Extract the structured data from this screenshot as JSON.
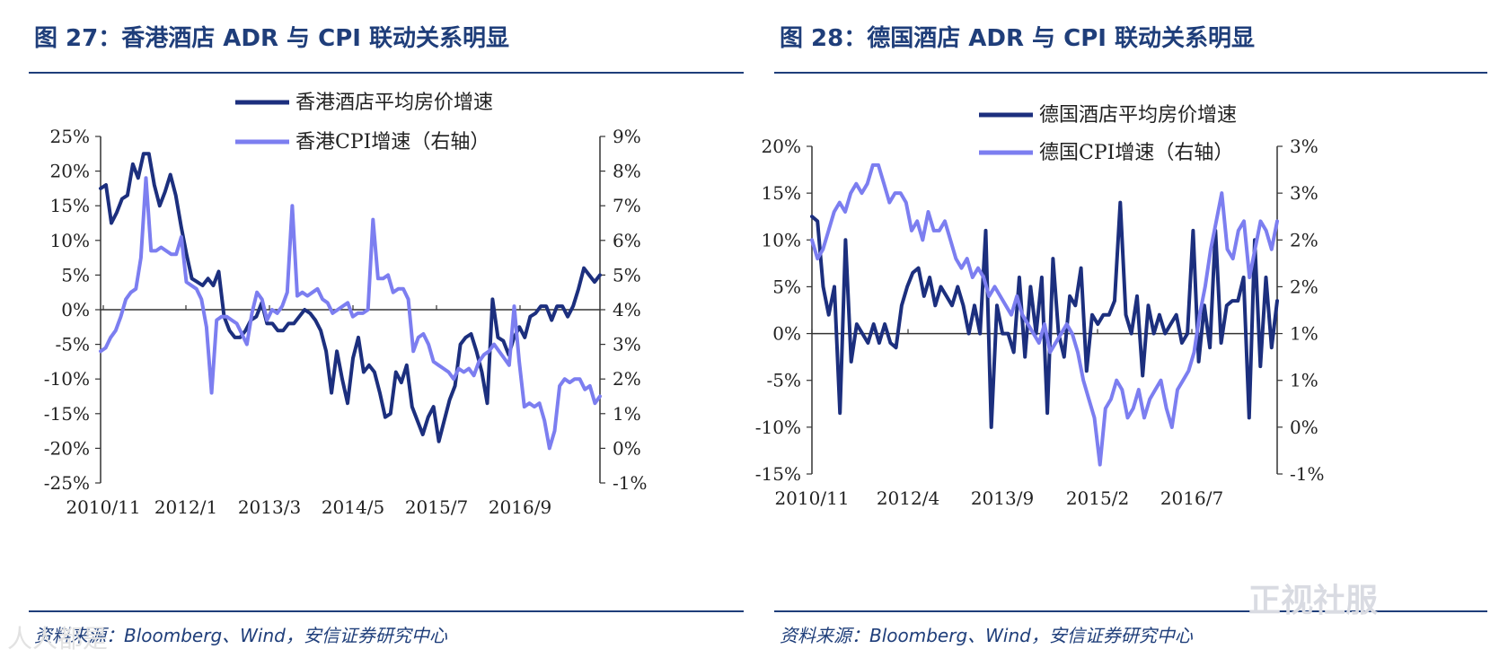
{
  "left": {
    "title": "图 27：香港酒店 ADR 与 CPI 联动关系明显",
    "source": "资料来源：Bloomberg、Wind，安信证券研究中心"
  },
  "right": {
    "title": "图 28：德国酒店 ADR 与 CPI 联动关系明显",
    "source": "资料来源：Bloomberg、Wind，安信证券研究中心"
  },
  "watermark": "正视社服",
  "watermark_left": "人人都是",
  "colors": {
    "adr": "#1c2f7e",
    "cpi": "#7c7ef0",
    "rule": "#1f3e7a"
  },
  "chart_data": [
    {
      "type": "line",
      "title": "图 27：香港酒店 ADR 与 CPI 联动关系明显",
      "x_tick_labels": [
        "2010/11",
        "2012/1",
        "2013/3",
        "2014/5",
        "2015/7",
        "2016/9"
      ],
      "y_left_ticks": [
        "25%",
        "20%",
        "15%",
        "10%",
        "5%",
        "0%",
        "-5%",
        "-10%",
        "-15%",
        "-20%",
        "-25%"
      ],
      "y_right_ticks": [
        "9%",
        "8%",
        "7%",
        "6%",
        "5%",
        "4%",
        "3%",
        "2%",
        "1%",
        "0%",
        "-1%"
      ],
      "ylim_left": [
        -25,
        25
      ],
      "ylim_right": [
        -1,
        9
      ],
      "x_range": [
        0,
        79
      ],
      "series": [
        {
          "name": "香港酒店平均房价增速",
          "axis": "left",
          "values": [
            17.5,
            18,
            12.5,
            14,
            16,
            16.5,
            21,
            19,
            22.5,
            22.5,
            18,
            15,
            17,
            19.5,
            16.5,
            12,
            8,
            4.5,
            4,
            3.5,
            4.5,
            3.5,
            5.5,
            -1,
            -3,
            -4,
            -4,
            -3,
            -1.5,
            -1,
            1,
            -2,
            -2,
            -3,
            -3,
            -2,
            -2,
            -1,
            0,
            -0.5,
            -1.5,
            -3,
            -6,
            -12,
            -6,
            -10,
            -13.5,
            -7,
            -4,
            -9,
            -8,
            -9,
            -12,
            -15.5,
            -15,
            -9,
            -10.5,
            -8,
            -14,
            -16,
            -18,
            -15.5,
            -14,
            -19,
            -16,
            -13,
            -11,
            -5,
            -4,
            -3.5,
            -6,
            -9,
            -13.5,
            1.5,
            -4,
            -4.5,
            -6.5,
            -4,
            -2.5,
            -4,
            -1,
            -0.5,
            0.5,
            0.5,
            -1.5,
            0.5,
            0.5,
            -1,
            0.5,
            3,
            6,
            5,
            4,
            5
          ]
        },
        {
          "name": "香港CPI增速（右轴）",
          "axis": "right",
          "values": [
            2.8,
            2.9,
            3.2,
            3.4,
            3.8,
            4.3,
            4.5,
            4.6,
            5.5,
            7.8,
            5.7,
            5.7,
            5.8,
            5.7,
            5.6,
            5.6,
            6.1,
            4.8,
            4.7,
            4.6,
            4.3,
            3.5,
            1.6,
            3.7,
            3.8,
            3.8,
            3.7,
            3.6,
            3.3,
            3.0,
            3.9,
            4.5,
            4.3,
            3.7,
            4.0,
            3.9,
            4.1,
            4.5,
            7.0,
            4.4,
            4.5,
            4.4,
            4.5,
            4.6,
            4.3,
            4.2,
            3.9,
            4.0,
            4.1,
            4.2,
            3.8,
            3.9,
            3.9,
            4.0,
            6.6,
            4.9,
            4.9,
            5.0,
            4.5,
            4.6,
            4.6,
            4.3,
            2.8,
            3.2,
            3.3,
            3.0,
            2.5,
            2.4,
            2.3,
            2.2,
            2.0,
            2.3,
            2.2,
            2.3,
            2.1,
            2.5,
            2.7,
            2.8,
            3.0,
            2.8,
            2.6,
            2.4,
            4.1,
            2.5,
            1.2,
            1.3,
            1.2,
            1.3,
            0.8,
            0.0,
            0.5,
            1.8,
            2.0,
            1.9,
            2.0,
            2.0,
            1.7,
            1.8,
            1.3,
            1.5
          ]
        }
      ]
    },
    {
      "type": "line",
      "title": "图 28：德国酒店 ADR 与 CPI 联动关系明显",
      "x_tick_labels": [
        "2010/11",
        "2012/4",
        "2013/9",
        "2015/2",
        "2016/7"
      ],
      "y_left_ticks": [
        "20%",
        "15%",
        "10%",
        "5%",
        "0%",
        "-5%",
        "-10%",
        "-15%"
      ],
      "y_right_ticks": [
        "3%",
        "3%",
        "2%",
        "2%",
        "1%",
        "1%",
        "0%",
        "-1%"
      ],
      "ylim_left": [
        -15,
        20
      ],
      "ylim_right": [
        -0.5,
        3
      ],
      "x_range": [
        0,
        69
      ],
      "series": [
        {
          "name": "德国酒店平均房价增速",
          "axis": "left",
          "values": [
            12.5,
            12,
            5,
            2,
            5,
            -8.5,
            10,
            -3,
            1,
            0,
            -1,
            1,
            -1,
            1,
            -1,
            -1.5,
            3,
            5,
            6.5,
            7,
            4,
            6,
            3,
            5,
            4,
            3,
            5,
            3,
            0,
            3,
            0,
            11,
            -10,
            3,
            0,
            0,
            -2,
            6,
            -2.5,
            5,
            0,
            6,
            -8.5,
            8,
            0,
            -2.5,
            4,
            3,
            7,
            -4,
            2,
            1,
            2,
            2,
            3.5,
            14,
            2,
            0,
            4,
            -4.5,
            3,
            0,
            2,
            0,
            1,
            2,
            -1,
            0,
            11,
            -3,
            3,
            -1.5,
            11,
            -1,
            3,
            3.5,
            3.5,
            6,
            -9,
            10,
            -3.5,
            6,
            -1.5,
            3.5
          ]
        },
        {
          "name": "德国CPI增速（右轴）",
          "axis": "right",
          "values": [
            2.0,
            1.8,
            1.9,
            2.1,
            2.3,
            2.4,
            2.3,
            2.5,
            2.6,
            2.5,
            2.6,
            2.8,
            2.8,
            2.6,
            2.4,
            2.5,
            2.5,
            2.4,
            2.1,
            2.2,
            2.0,
            2.3,
            2.1,
            2.1,
            2.2,
            2.0,
            1.8,
            1.7,
            1.8,
            1.6,
            1.7,
            1.6,
            1.4,
            1.5,
            1.4,
            1.3,
            1.2,
            1.4,
            1.2,
            1.1,
            1.0,
            0.9,
            1.1,
            0.8,
            0.9,
            1.0,
            1.1,
            1.0,
            0.8,
            0.5,
            0.3,
            0.1,
            -0.4,
            0.2,
            0.3,
            0.5,
            0.4,
            0.1,
            0.2,
            0.4,
            0.1,
            0.3,
            0.4,
            0.5,
            0.2,
            0.0,
            0.4,
            0.5,
            0.6,
            0.8,
            1.2,
            1.5,
            1.9,
            2.2,
            2.5,
            1.9,
            1.8,
            2.1,
            2.2,
            1.6,
            1.9,
            2.2,
            2.1,
            1.9,
            2.2
          ]
        }
      ]
    }
  ]
}
